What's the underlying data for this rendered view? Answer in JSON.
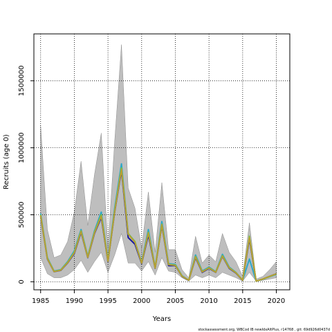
{
  "chart_data": {
    "type": "line",
    "xlabel": "Years",
    "ylabel": "Recruits (age 0)",
    "footer": "stockassessment.org,  WBCod  IB  newIdxAltPlus,  r14768  ,  git:  69d926d0437d",
    "x_ticks": [
      1985,
      1990,
      1995,
      2000,
      2005,
      2010,
      2015,
      2020
    ],
    "y_ticks": [
      0,
      500000,
      1000000,
      1500000
    ],
    "y_tick_labels": [
      "0",
      "500000",
      "1000000",
      "1500000"
    ],
    "xlim": [
      1984,
      2022
    ],
    "ylim": [
      -60000,
      1850000
    ],
    "grid": true,
    "x": [
      1985,
      1986,
      1987,
      1988,
      1989,
      1990,
      1991,
      1992,
      1993,
      1994,
      1995,
      1996,
      1997,
      1998,
      1999,
      2000,
      2001,
      2002,
      2003,
      2004,
      2005,
      2006,
      2007,
      2008,
      2009,
      2010,
      2011,
      2012,
      2013,
      2014,
      2015,
      2016,
      2017,
      2018,
      2019,
      2020
    ],
    "band_upper": [
      1170000,
      390000,
      180000,
      200000,
      300000,
      520000,
      900000,
      420000,
      800000,
      1110000,
      250000,
      1050000,
      1770000,
      700000,
      550000,
      250000,
      670000,
      220000,
      740000,
      240000,
      240000,
      90000,
      30000,
      340000,
      140000,
      200000,
      150000,
      360000,
      220000,
      150000,
      40000,
      440000,
      20000,
      40000,
      90000,
      150000
    ],
    "band_lower": [
      180000,
      60000,
      30000,
      30000,
      50000,
      90000,
      160000,
      70000,
      150000,
      220000,
      70000,
      200000,
      360000,
      140000,
      140000,
      80000,
      150000,
      50000,
      180000,
      80000,
      70000,
      30000,
      5000,
      50000,
      30000,
      50000,
      30000,
      70000,
      50000,
      30000,
      5000,
      70000,
      5000,
      10000,
      20000,
      30000
    ],
    "series": [
      {
        "color": "#1a1a9e",
        "values": [
          490000,
          170000,
          75000,
          85000,
          140000,
          210000,
          370000,
          180000,
          360000,
          480000,
          150000,
          520000,
          830000,
          330000,
          280000,
          135000,
          350000,
          100000,
          420000,
          120000,
          120000,
          40000,
          10000,
          180000,
          70000,
          100000,
          70000,
          190000,
          100000,
          65000,
          10000,
          320000,
          5000,
          20000,
          40000,
          60000
        ]
      },
      {
        "color": "#2ca8c9",
        "values": [
          510000,
          180000,
          80000,
          90000,
          150000,
          230000,
          390000,
          190000,
          380000,
          520000,
          160000,
          550000,
          880000,
          360000,
          300000,
          145000,
          390000,
          105000,
          450000,
          135000,
          130000,
          45000,
          12000,
          200000,
          80000,
          110000,
          75000,
          205000,
          110000,
          70000,
          12000,
          170000,
          5000,
          20000,
          38000,
          55000
        ]
      },
      {
        "color": "#7ac142",
        "values": [
          500000,
          175000,
          78000,
          88000,
          145000,
          220000,
          380000,
          185000,
          370000,
          500000,
          155000,
          530000,
          850000,
          360000,
          300000,
          140000,
          370000,
          102000,
          430000,
          130000,
          125000,
          42000,
          11000,
          190000,
          75000,
          105000,
          72000,
          195000,
          105000,
          68000,
          11000,
          340000,
          5000,
          20000,
          39000,
          58000
        ]
      },
      {
        "color": "#b7a033",
        "values": [
          495000,
          172000,
          76000,
          86000,
          142000,
          215000,
          375000,
          182000,
          365000,
          490000,
          152000,
          525000,
          840000,
          355000,
          295000,
          138000,
          365000,
          101000,
          425000,
          128000,
          122000,
          41000,
          11000,
          185000,
          73000,
          103000,
          71000,
          192000,
          103000,
          67000,
          11000,
          330000,
          5000,
          21000,
          40000,
          59000
        ]
      }
    ]
  }
}
